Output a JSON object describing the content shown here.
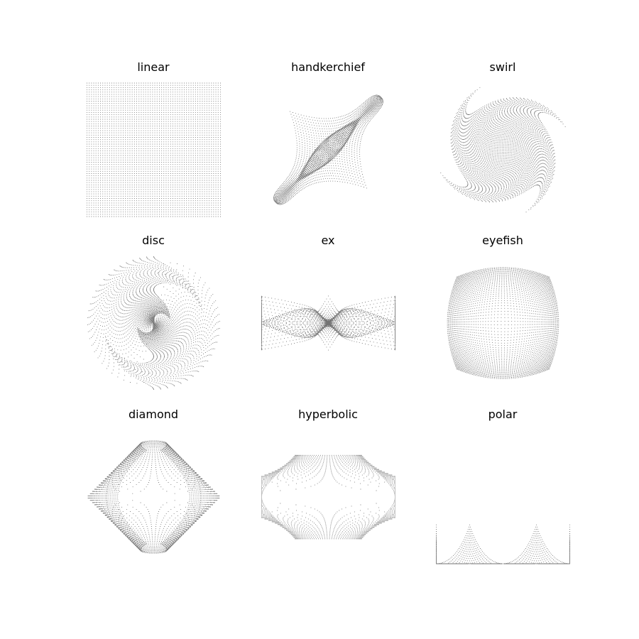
{
  "chart_data": [
    {
      "type": "scatter",
      "title": "linear",
      "variation": "linear",
      "grid": false,
      "axes": "off",
      "sample_grid": 60,
      "xlim": [
        -1.0,
        1.0
      ],
      "ylim": [
        -1.0,
        1.0
      ]
    },
    {
      "type": "scatter",
      "title": "handkerchief",
      "variation": "handkerchief",
      "grid": false,
      "axes": "off",
      "sample_grid": 60,
      "xlim": [
        -1.45,
        1.45
      ],
      "ylim": [
        -1.45,
        1.45
      ]
    },
    {
      "type": "scatter",
      "title": "swirl",
      "variation": "swirl",
      "grid": false,
      "axes": "off",
      "sample_grid": 60,
      "xlim": [
        -1.42,
        1.42
      ],
      "ylim": [
        -1.42,
        1.42
      ]
    },
    {
      "type": "scatter",
      "title": "disc",
      "variation": "disc",
      "grid": false,
      "axes": "off",
      "sample_grid": 60,
      "xlim": [
        -1.0,
        1.0
      ],
      "ylim": [
        -1.0,
        1.0
      ]
    },
    {
      "type": "scatter",
      "title": "ex",
      "variation": "ex",
      "grid": false,
      "axes": "off",
      "sample_grid": 60,
      "xlim": [
        -1.42,
        1.42
      ],
      "ylim": [
        -1.42,
        1.42
      ]
    },
    {
      "type": "scatter",
      "title": "eyefish",
      "variation": "eyefish",
      "grid": false,
      "axes": "off",
      "sample_grid": 60,
      "xlim": [
        -0.6,
        0.6
      ],
      "ylim": [
        -0.6,
        0.6
      ]
    },
    {
      "type": "scatter",
      "title": "diamond",
      "variation": "diamond",
      "grid": false,
      "axes": "off",
      "sample_grid": 60,
      "xlim": [
        -1.0,
        1.0
      ],
      "ylim": [
        -1.0,
        1.0
      ]
    },
    {
      "type": "scatter",
      "title": "hyperbolic",
      "variation": "hyperbolic",
      "grid": false,
      "axes": "off",
      "sample_grid": 60,
      "xlim": [
        -1.0,
        1.0
      ],
      "ylim": [
        -1.6,
        1.6
      ]
    },
    {
      "type": "scatter",
      "title": "polar",
      "variation": "polar",
      "grid": false,
      "axes": "off",
      "sample_grid": 60,
      "xlim": [
        -0.5,
        0.5
      ],
      "ylim": [
        0.0,
        1.42
      ]
    }
  ],
  "colors": {
    "point": "#000000",
    "background": "#ffffff"
  }
}
